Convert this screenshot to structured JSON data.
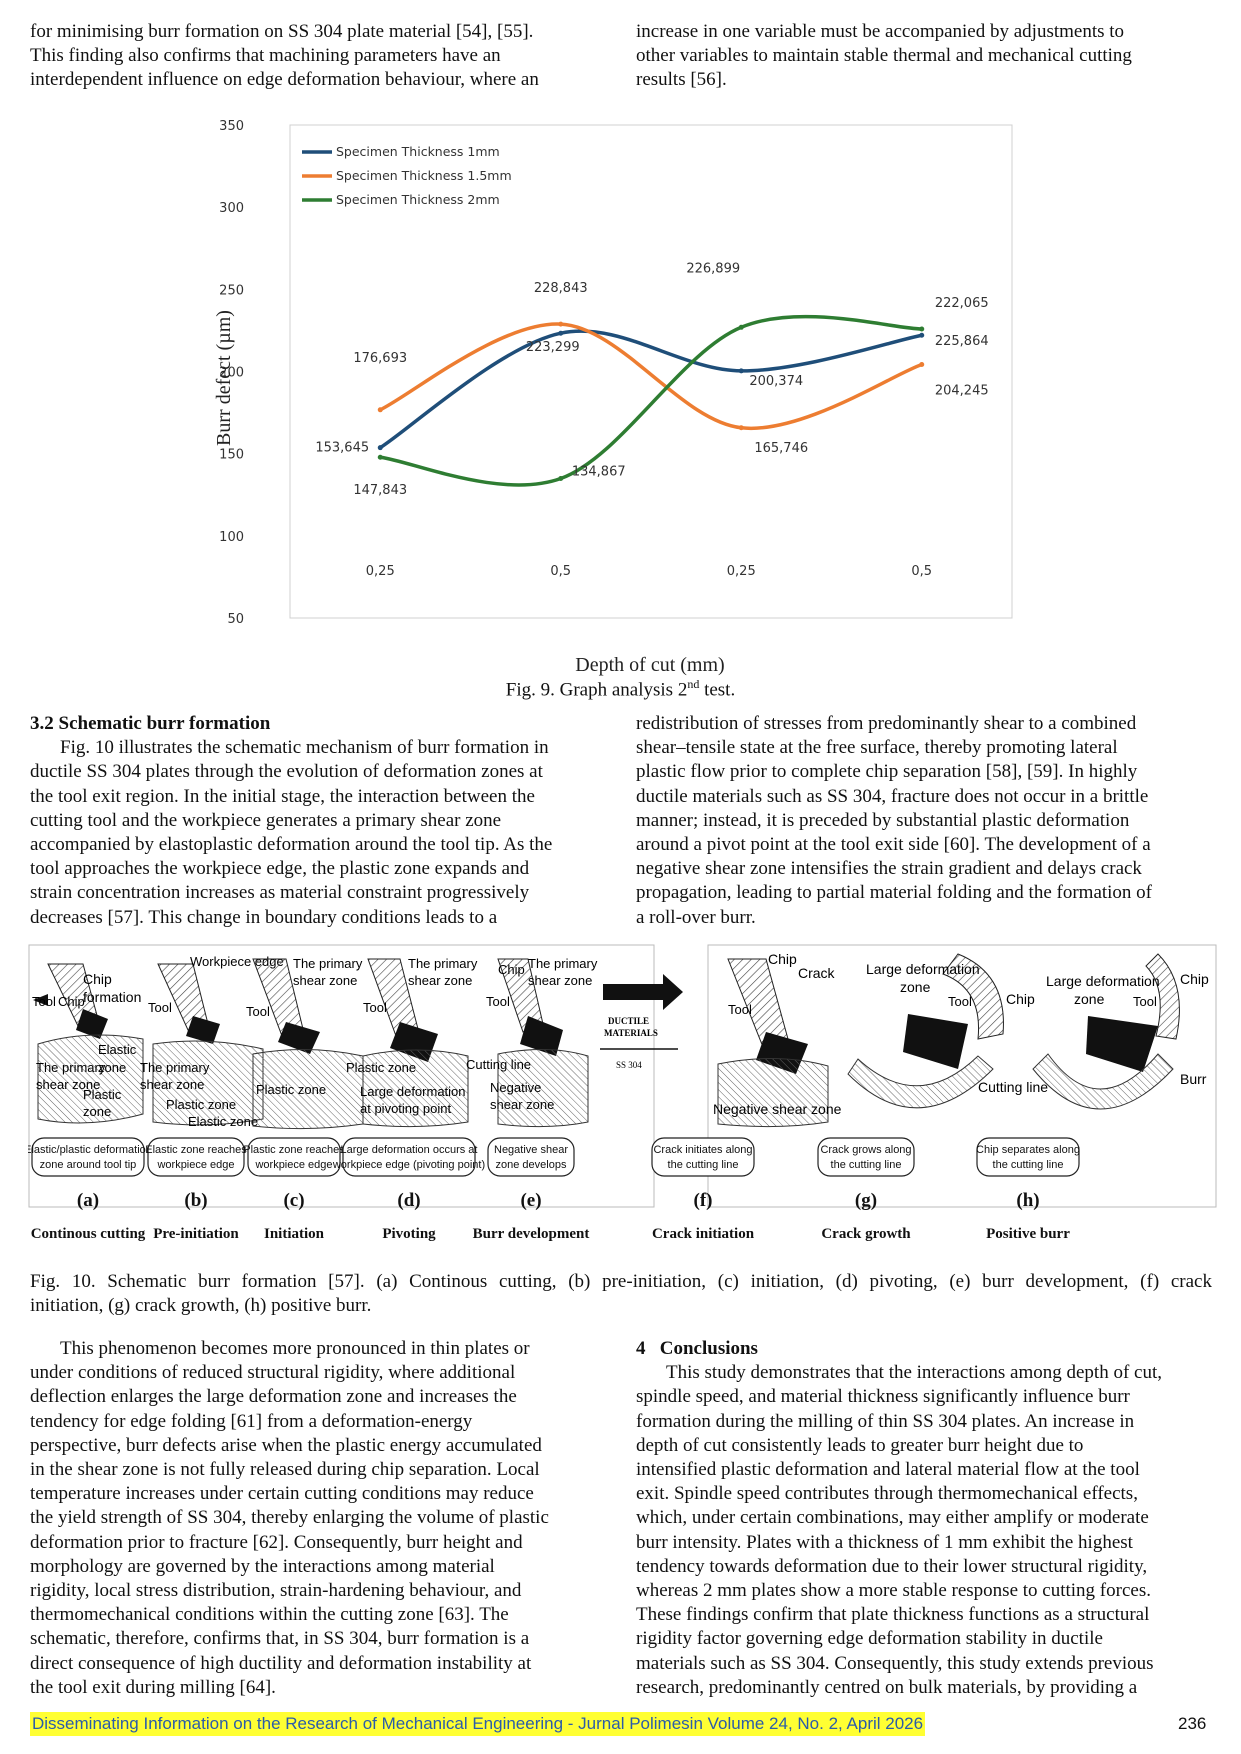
{
  "top_left": {
    "lines": [
      "for minimising burr formation on SS 304 plate material [54], [55].",
      "This finding also confirms that machining parameters have an",
      "interdependent influence on edge deformation behaviour, where an"
    ]
  },
  "top_right": {
    "lines": [
      "increase in one variable must be accompanied by adjustments to",
      "other variables to maintain stable thermal and mechanical cutting",
      "results [56]."
    ]
  },
  "fig9": {
    "caption_pre": "Fig. 9. Graph analysis 2",
    "caption_sup": "nd",
    "caption_post": " test."
  },
  "chart_data": {
    "type": "line",
    "categories": [
      "0,25",
      "0,5",
      "0,25",
      "0,5"
    ],
    "xlabel": "Depth of cut (mm)",
    "ylabel": "Burr defect (µm)",
    "ylim": [
      50,
      350
    ],
    "yticks": [
      "50",
      "100",
      "150",
      "200",
      "250",
      "300",
      "350"
    ],
    "legend_position": "top-left",
    "series": [
      {
        "name": "Specimen Thickness 1mm",
        "color": "#1f4e79",
        "values": [
          153.645,
          223.299,
          200.374,
          222.065
        ],
        "labels": [
          "153,645",
          "223,299",
          "200,374",
          "222,065"
        ]
      },
      {
        "name": "Specimen Thickness 1.5mm",
        "color": "#ed7d31",
        "values": [
          176.693,
          228.843,
          165.746,
          204.245
        ],
        "labels": [
          "176,693",
          "228,843",
          "165,746",
          "204,245"
        ]
      },
      {
        "name": "Specimen Thickness 2mm",
        "color": "#2e7d32",
        "values": [
          147.843,
          134.867,
          226.899,
          225.864
        ],
        "labels": [
          "147,843",
          "134,867",
          "226,899",
          "225,864"
        ]
      }
    ]
  },
  "section32": {
    "heading": "3.2 Schematic burr formation",
    "left_lines": [
      "Fig. 10 illustrates the schematic mechanism of burr formation in",
      "ductile SS 304 plates through the evolution of deformation zones at",
      "the tool exit region. In the initial stage, the interaction between the",
      "cutting tool and the workpiece generates a primary shear zone",
      "accompanied by elastoplastic deformation around the tool tip. As the",
      "tool approaches the workpiece edge, the plastic zone expands and",
      "strain concentration increases as material constraint progressively",
      "decreases [57]. This change in boundary conditions leads to a"
    ],
    "right_lines": [
      "redistribution of stresses from predominantly shear to a combined",
      "shear–tensile state at the free surface, thereby promoting lateral",
      "plastic flow prior to complete chip separation [58], [59]. In highly",
      "ductile materials such as SS 304, fracture does not occur in a brittle",
      "manner; instead, it is preceded by substantial plastic deformation",
      "around a pivot point at the tool exit side [60]. The development of a",
      "negative shear zone intensifies the strain gradient and delays crack",
      "propagation, leading to partial material folding and the formation of",
      "a roll-over burr."
    ]
  },
  "fig10": {
    "stages": [
      {
        "letter": "(a)",
        "name": "Continous cutting",
        "box": [
          "Elastic/plastic deformation",
          "zone around tool tip"
        ]
      },
      {
        "letter": "(b)",
        "name": "Pre-initiation",
        "box": [
          "Elastic zone reaches",
          "workpiece edge"
        ]
      },
      {
        "letter": "(c)",
        "name": "Initiation",
        "box": [
          "Plastic zone reaches",
          "workpiece edge"
        ]
      },
      {
        "letter": "(d)",
        "name": "Pivoting",
        "box": [
          "Large deformation occurs at",
          "workpiece edge (pivoting point)"
        ]
      },
      {
        "letter": "(e)",
        "name": "Burr development",
        "box": [
          "Negative shear",
          "zone develops"
        ]
      },
      {
        "letter": "(f)",
        "name": "Crack initiation",
        "box": [
          "Crack initiates along",
          "the cutting line"
        ]
      },
      {
        "letter": "(g)",
        "name": "Crack growth",
        "box": [
          "Crack grows along",
          "the cutting line"
        ]
      },
      {
        "letter": "(h)",
        "name": "Positive burr",
        "box": [
          "Chip separates along",
          "the cutting line"
        ]
      }
    ],
    "labels": {
      "a_chip": "Chip",
      "a_formation": "formation",
      "a_tool": "Tool",
      "a_chip2": "Chip",
      "a_elastic": "Elastic",
      "a_zone": "zone",
      "a_primary": "The primary",
      "a_shear": "shear zone",
      "a_plastic": "Plastic",
      "a_zone2": "zone",
      "b_edge": "Workpiece edge",
      "b_tool": "Tool",
      "b_primary": "The primary",
      "b_shear": "shear zone",
      "b_plastic": "Plastic zone",
      "b_elastic": "Elastic zone",
      "c_primary": "The primary",
      "c_shear": "shear zone",
      "c_tool": "Tool",
      "c_plastic": "Plastic zone",
      "d_primary": "The primary",
      "d_shear": "shear zone",
      "d_tool": "Tool",
      "d_plastic": "Plastic zone",
      "d_large": "Large deformation",
      "d_pivot": "at pivoting point",
      "e_chip": "Chip",
      "e_primary": "The primary",
      "e_shear": "shear zone",
      "e_tool": "Tool",
      "e_cutting": "Cutting line",
      "e_negative": "Negative",
      "e_shear2": "shear zone",
      "mid_ductile": "DUCTILE",
      "mid_materials": "MATERIALS",
      "mid_ss": "SS 304",
      "f_chip": "Chip",
      "f_crack": "Crack",
      "f_tool": "Tool",
      "f_negative": "Negative shear zone",
      "g_large": "Large deformation",
      "g_zone": "zone",
      "g_tool": "Tool",
      "g_chip": "Chip",
      "g_cutting": "Cutting line",
      "h_large": "Large deformation",
      "h_zone": "zone",
      "h_tool": "Tool",
      "h_chip": "Chip",
      "h_burr": "Burr"
    },
    "caption_lines": [
      "Fig. 10. Schematic burr formation [57]. (a) Continous cutting, (b) pre-initiation, (c) initiation, (d) pivoting, (e) burr development, (f) crack",
      "initiation, (g) crack growth, (h) positive burr."
    ]
  },
  "bottom_left": {
    "lines": [
      "This phenomenon becomes more pronounced in thin plates or",
      "under conditions of reduced structural rigidity, where additional",
      "deflection enlarges the large deformation zone and increases the",
      "tendency for edge folding [61] from a deformation-energy",
      "perspective, burr defects arise when the plastic energy accumulated",
      "in the shear zone is not fully released during chip separation. Local",
      "temperature increases under certain cutting conditions may reduce",
      "the yield strength of SS 304, thereby enlarging the volume of plastic",
      "deformation prior to fracture [62]. Consequently, burr height and",
      "morphology are governed by the interactions among material",
      "rigidity, local stress distribution, strain-hardening behaviour, and",
      "thermomechanical conditions within the cutting zone [63]. The",
      "schematic, therefore, confirms that, in SS 304, burr formation is a",
      "direct consequence of high ductility and deformation instability at",
      "the tool exit during milling [64]."
    ]
  },
  "conclusions": {
    "heading": "4   Conclusions",
    "lines": [
      "This study demonstrates that the interactions among depth of cut,",
      "spindle speed, and material thickness significantly influence burr",
      "formation during the milling of thin SS 304 plates. An increase in",
      "depth of cut consistently leads to greater burr height due to",
      "intensified plastic deformation and lateral material flow at the tool",
      "exit. Spindle speed contributes through thermomechanical effects,",
      "which, under certain combinations, may either amplify or moderate",
      "burr intensity. Plates with a thickness of 1 mm exhibit the highest",
      "tendency towards deformation due to their lower structural rigidity,",
      "whereas 2 mm plates show a more stable response to cutting forces.",
      "These findings confirm that plate thickness functions as a structural",
      "rigidity factor governing edge deformation stability in ductile",
      "materials such as SS 304. Consequently, this study extends previous",
      "research, predominantly centred on bulk materials, by providing a"
    ]
  },
  "footer": {
    "text": "Disseminating Information on the Research of Mechanical Engineering - Jurnal Polimesin Volume 24, No. 2, April 2026",
    "page": "236"
  }
}
